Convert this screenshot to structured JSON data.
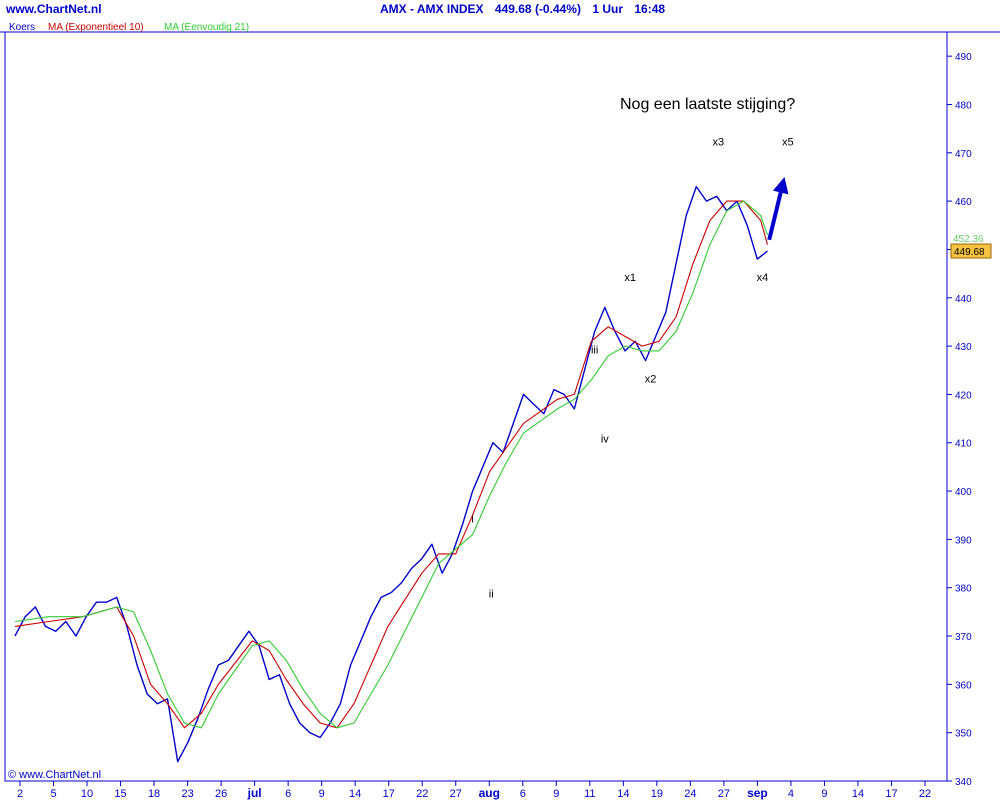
{
  "header": {
    "site": "www.ChartNet.nl",
    "symbol": "AMX - AMX INDEX",
    "last_change": "449.68 (-0.44%)",
    "interval": "1 Uur",
    "time": "16:48"
  },
  "legend": {
    "price": "Koers",
    "ema": "MA (Exponentieel 10)",
    "sma": "MA (Eenvoudig 21)"
  },
  "copyright": "© www.ChartNet.nl",
  "colors": {
    "price": "#0000cc",
    "ema": "#cc0000",
    "sma": "#33cc33",
    "axis": "#0000cc",
    "arrow": "#0000cc",
    "last_badge": "#f5c242",
    "sma_badge_text": "#66cc66"
  },
  "chart_data": {
    "type": "line",
    "title": "AMX - AMX INDEX",
    "annotation_title": "Nog een laatste stijging?",
    "ylim": [
      340,
      495
    ],
    "y_ticks": [
      340,
      350,
      360,
      370,
      380,
      390,
      400,
      410,
      420,
      430,
      440,
      450,
      460,
      470,
      480,
      490
    ],
    "x_tick_labels": [
      "2",
      "5",
      "10",
      "15",
      "18",
      "23",
      "26",
      "jul",
      "6",
      "9",
      "14",
      "17",
      "22",
      "27",
      "aug",
      "6",
      "9",
      "11",
      "14",
      "19",
      "24",
      "27",
      "sep",
      "4",
      "9",
      "14",
      "17",
      "22"
    ],
    "x_range": [
      0,
      27.2
    ],
    "last_value_badge": "449.68",
    "sma_value_badge": "452.36",
    "series": [
      {
        "name": "Koers",
        "x": [
          0,
          0.3,
          0.6,
          0.9,
          1.2,
          1.5,
          1.8,
          2.1,
          2.4,
          2.7,
          3.0,
          3.3,
          3.6,
          3.9,
          4.2,
          4.5,
          4.8,
          5.1,
          5.4,
          5.7,
          6.0,
          6.3,
          6.6,
          6.9,
          7.2,
          7.5,
          7.8,
          8.1,
          8.4,
          8.7,
          9.0,
          9.3,
          9.6,
          9.9,
          10.2,
          10.5,
          10.8,
          11.1,
          11.4,
          11.7,
          12.0,
          12.3,
          12.6,
          12.9,
          13.2,
          13.5,
          13.8,
          14.1,
          14.4,
          14.7,
          15.0,
          15.3,
          15.6,
          15.9,
          16.2,
          16.5,
          16.8,
          17.1,
          17.4,
          17.7,
          18.0,
          18.3,
          18.6,
          18.9,
          19.2,
          19.5,
          19.8,
          20.1,
          20.4,
          20.7,
          21.0,
          21.3,
          21.6,
          21.9,
          22.2
        ],
        "values": [
          370,
          374,
          376,
          372,
          371,
          373,
          370,
          374,
          377,
          377,
          378,
          372,
          364,
          358,
          356,
          357,
          344,
          348,
          353,
          359,
          364,
          365,
          368,
          371,
          368,
          361,
          362,
          356,
          352,
          350,
          349,
          352,
          356,
          364,
          369,
          374,
          378,
          379,
          381,
          384,
          386,
          389,
          383,
          387,
          393,
          400,
          405,
          410,
          408,
          414,
          420,
          418,
          416,
          421,
          420,
          417,
          425,
          433,
          438,
          433,
          429,
          431,
          427,
          432,
          437,
          447,
          457,
          463,
          460,
          461,
          458,
          460,
          455,
          448,
          449.68
        ]
      },
      {
        "name": "MA (Exponentieel 10)",
        "x": [
          0,
          1,
          2,
          3,
          3.5,
          4,
          4.5,
          5,
          5.5,
          6,
          7,
          7.5,
          8,
          8.5,
          9,
          9.5,
          10,
          11,
          12,
          12.5,
          13,
          13.5,
          14,
          14.5,
          15,
          16,
          16.5,
          17,
          17.5,
          18,
          18.5,
          19,
          19.5,
          20,
          20.5,
          21,
          21.5,
          22,
          22.2
        ],
        "values": [
          372,
          373,
          374,
          376,
          370,
          360,
          356,
          351,
          354,
          360,
          369,
          367,
          361,
          356,
          352,
          351,
          356,
          372,
          383,
          387,
          387,
          395,
          404,
          409,
          414,
          419,
          420,
          431,
          434,
          432,
          430,
          431,
          436,
          447,
          456,
          460,
          460,
          456,
          451
        ]
      },
      {
        "name": "MA (Eenvoudig 21)",
        "x": [
          0,
          1,
          2,
          3,
          3.5,
          4,
          4.5,
          5,
          5.5,
          6,
          7,
          7.5,
          8,
          8.5,
          9,
          9.5,
          10,
          11,
          12,
          12.5,
          13,
          13.5,
          14,
          14.5,
          15,
          16,
          16.5,
          17,
          17.5,
          18,
          18.5,
          19,
          19.5,
          20,
          20.5,
          21,
          21.5,
          22,
          22.2
        ],
        "values": [
          373,
          374,
          374,
          376,
          375,
          367,
          358,
          352,
          351,
          358,
          368,
          369,
          365,
          359,
          354,
          351,
          352,
          364,
          378,
          385,
          388,
          391,
          399,
          406,
          412,
          417,
          419,
          423,
          428,
          430,
          429,
          429,
          433,
          441,
          451,
          458,
          460,
          457,
          453
        ]
      }
    ],
    "annotations": [
      {
        "text": "i",
        "x": 13.5,
        "y": 393.5
      },
      {
        "text": "ii",
        "x": 14.05,
        "y": 378
      },
      {
        "text": "iii",
        "x": 17.1,
        "y": 428.5
      },
      {
        "text": "iv",
        "x": 17.4,
        "y": 410
      },
      {
        "text": "x1",
        "x": 18.15,
        "y": 443.5
      },
      {
        "text": "x2",
        "x": 18.75,
        "y": 422.5
      },
      {
        "text": "x3",
        "x": 20.75,
        "y": 471.5
      },
      {
        "text": "x4",
        "x": 22.05,
        "y": 443.5
      },
      {
        "text": "x5",
        "x": 22.8,
        "y": 471.5
      }
    ],
    "arrow": {
      "from_x": 22.25,
      "from_y": 452,
      "to_x": 22.7,
      "to_y": 465
    },
    "grid": false
  }
}
